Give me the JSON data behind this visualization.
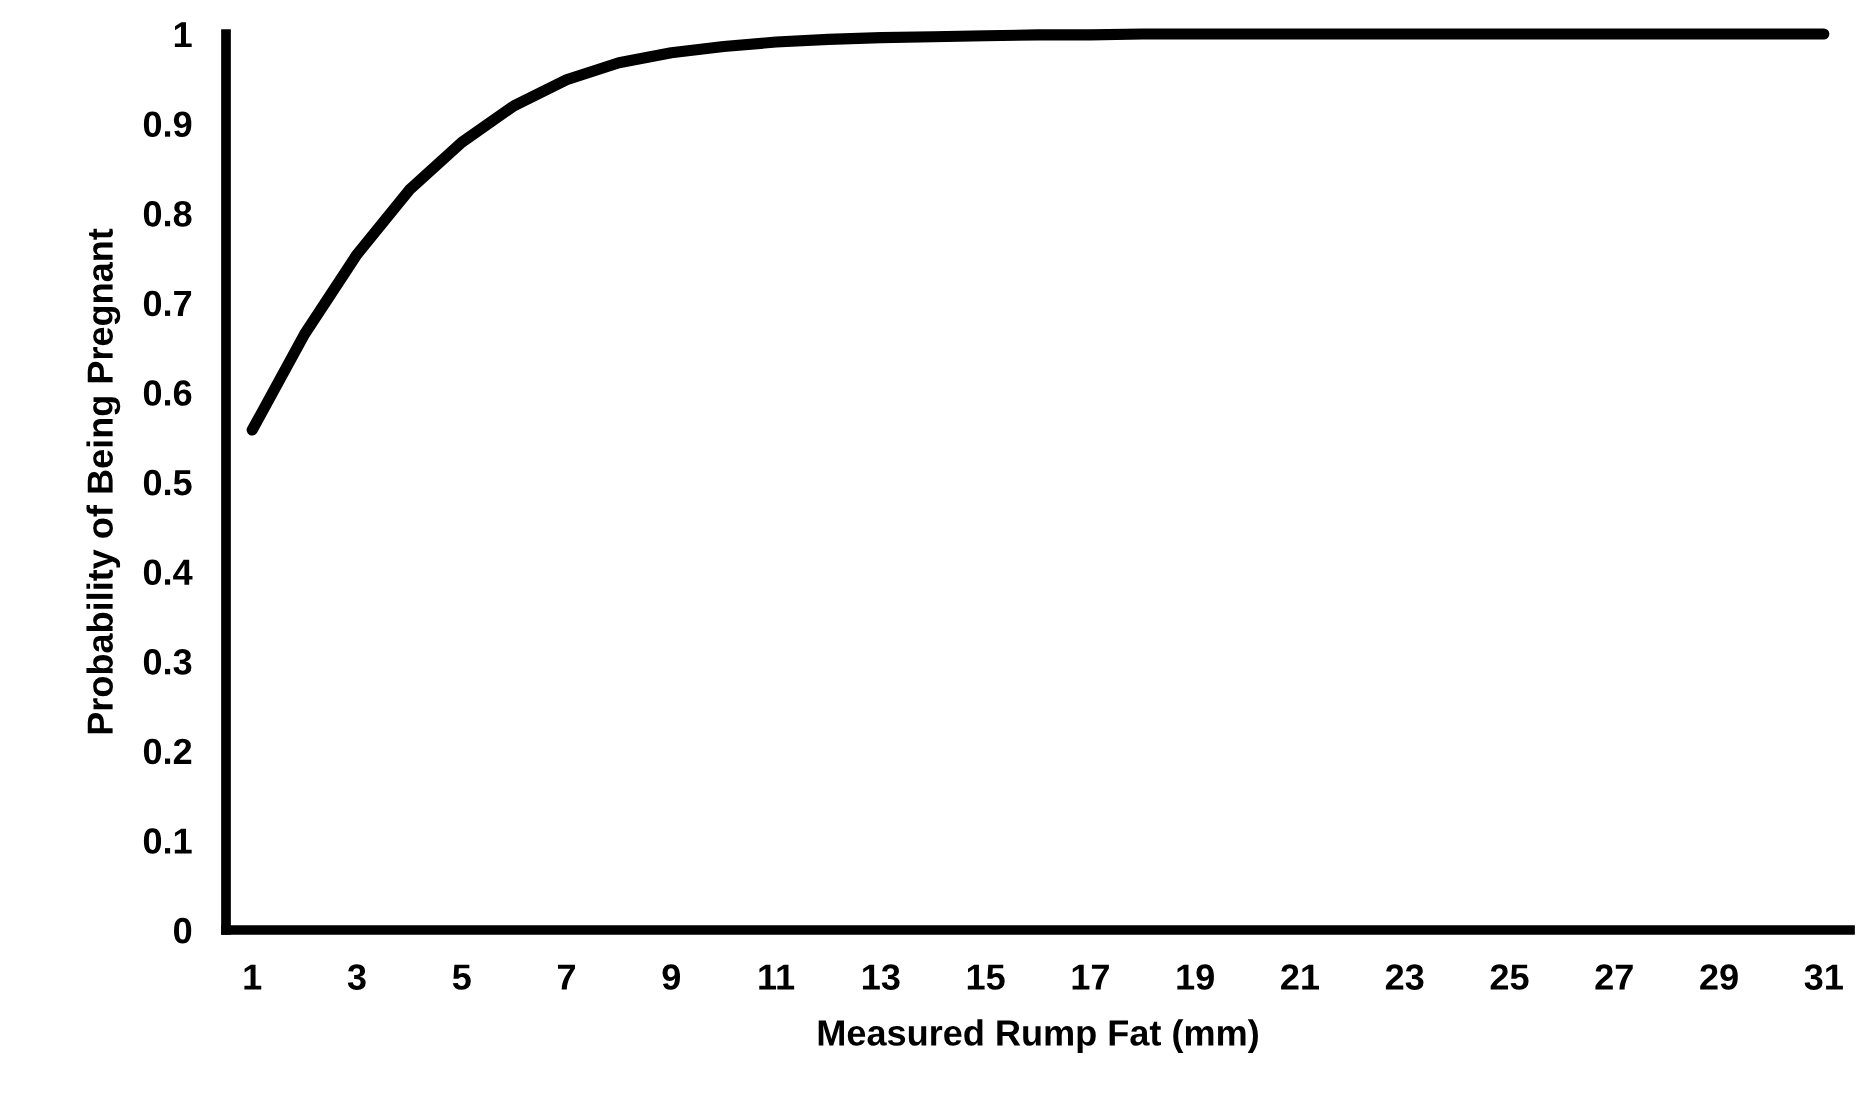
{
  "chart_data": {
    "type": "line",
    "xlabel": "Measured Rump Fat (mm)",
    "ylabel": "Probability of Being Pregnant",
    "x": [
      1,
      2,
      3,
      4,
      5,
      6,
      7,
      8,
      9,
      10,
      11,
      12,
      13,
      14,
      15,
      16,
      17,
      18,
      19,
      20,
      21,
      22,
      23,
      24,
      25,
      26,
      27,
      28,
      29,
      30,
      31
    ],
    "series": [
      {
        "color": "#000000",
        "values": [
          0.558,
          0.665,
          0.754,
          0.826,
          0.879,
          0.92,
          0.949,
          0.968,
          0.979,
          0.986,
          0.991,
          0.994,
          0.996,
          0.997,
          0.998,
          0.999,
          0.999,
          1,
          1,
          1,
          1,
          1,
          1,
          1,
          1,
          1,
          1,
          1,
          1,
          1,
          1
        ]
      }
    ],
    "xlim": [
      0.5,
      31.5
    ],
    "xticks": [
      1,
      3,
      5,
      7,
      9,
      11,
      13,
      15,
      17,
      19,
      21,
      23,
      25,
      27,
      29,
      31
    ],
    "ylim": [
      0,
      1
    ],
    "yticks": [
      0,
      0.1,
      0.2,
      0.3,
      0.4,
      0.5,
      0.6,
      0.7,
      0.8,
      0.9,
      1
    ],
    "grid": false,
    "legend": false,
    "marker": "none",
    "line_style": "solid"
  }
}
